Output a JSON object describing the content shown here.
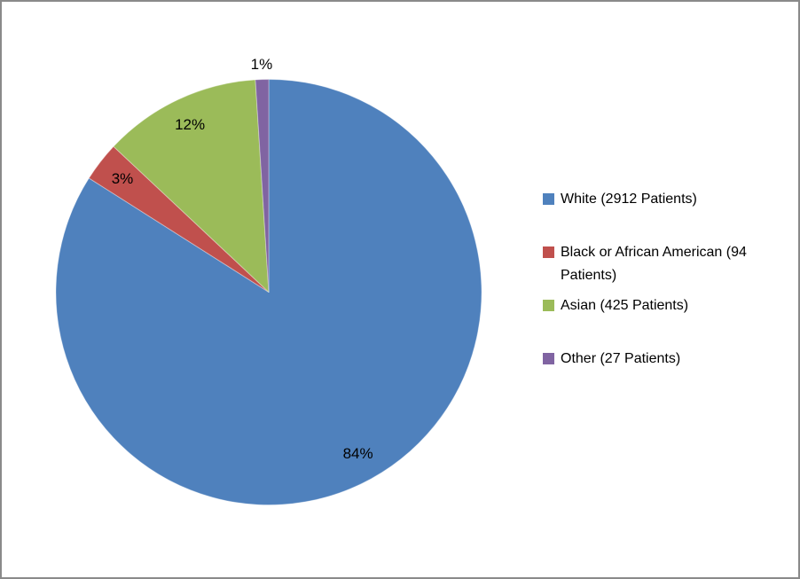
{
  "chart_data": {
    "type": "pie",
    "title": "",
    "legend_position": "right",
    "start_angle_deg": 0,
    "direction": "clockwise",
    "background_color": "#ffffff",
    "frame_border_color": "#8a8a8a",
    "label_color": "#000000",
    "slices": [
      {
        "label": "White (2912 Patients)",
        "patients": 2912,
        "value": 84,
        "pct_label": "84%",
        "color": "#4F81BD"
      },
      {
        "label": "Black or African American (94 Patients)",
        "patients": 94,
        "value": 3,
        "pct_label": "3%",
        "color": "#C0504D"
      },
      {
        "label": "Asian (425 Patients)",
        "patients": 425,
        "value": 12,
        "pct_label": "12%",
        "color": "#9BBB59"
      },
      {
        "label": "Other (27 Patients)",
        "patients": 27,
        "value": 1,
        "pct_label": "1%",
        "color": "#8064A2"
      }
    ]
  }
}
